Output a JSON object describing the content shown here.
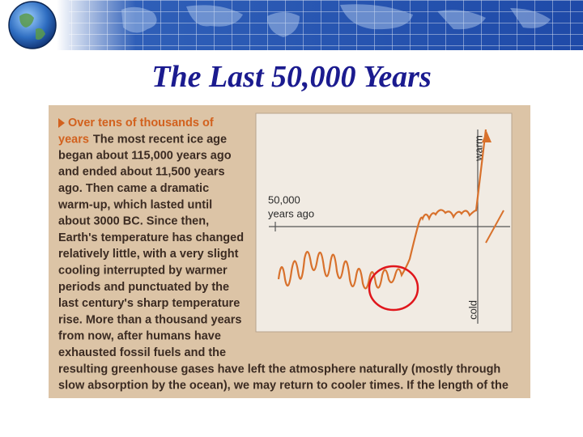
{
  "title": "The Last 50,000 Years",
  "scan": {
    "heading_lines": [
      "Over tens of thousands of",
      "years"
    ],
    "body_lines": [
      "The most recent ice age",
      "began about 115,000 years ago",
      "and ended about 11,500 years",
      "ago. Then came a dramatic",
      "warm-up, which lasted until",
      "about 3000 BC. Since then,",
      "Earth's temperature has changed",
      "relatively little, with a very slight",
      "cooling interrupted by warmer",
      "periods and punctuated by the",
      "last century's sharp temperature",
      "rise. More than a thousand years",
      "from now, after humans have",
      "exhausted fossil fuels and the",
      "resulting greenhouse gases have left the atmosphere naturally (mostly through",
      "slow absorption by the ocean), we may return to cooler times. If the length of the"
    ],
    "graph": {
      "time_label_lines": [
        "50,000",
        "years ago"
      ],
      "warm_label": "warm",
      "cold_label": "cold"
    }
  }
}
